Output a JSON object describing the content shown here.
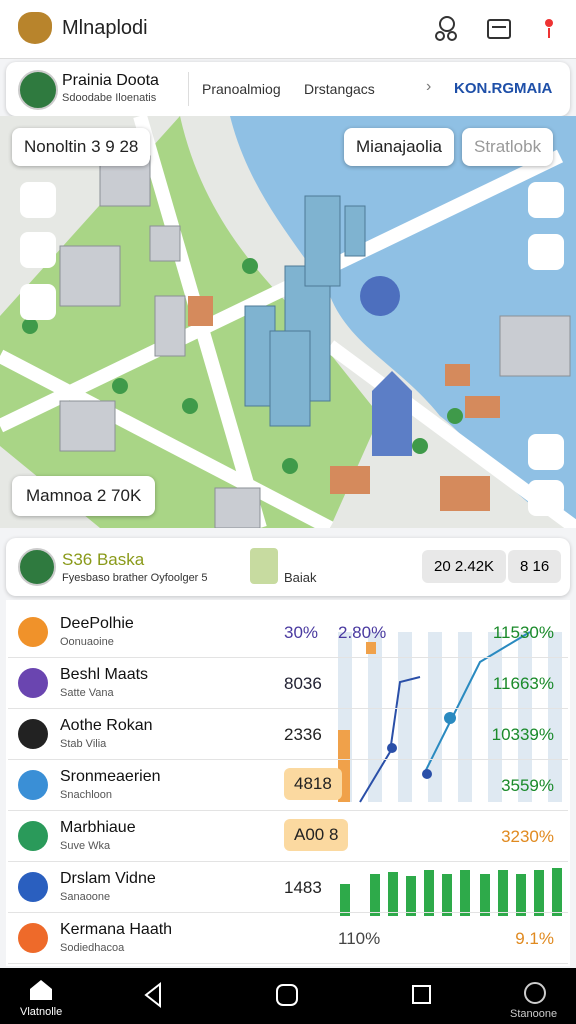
{
  "header": {
    "app_name": "Mlnaplodi"
  },
  "profile": {
    "name": "Prainia Doota",
    "subtitle": "Sdoodabe Iloenatis",
    "tabs": [
      "Pranoalmiog",
      "Drstangacs",
      "KON.RGMAIA"
    ]
  },
  "map": {
    "location_chip": "Nonoltin 3 9 28",
    "buttons": [
      "Mianajaolia",
      "Stratlobk"
    ],
    "stat_chip": "Mamnoa 2 70K"
  },
  "summary": {
    "title": "S36 Baska",
    "subtitle": "Fyesbaso brather Oyfoolger 5",
    "badge_label": "Baiak",
    "chips": [
      "20 2.42K",
      "8 16"
    ]
  },
  "list": {
    "rows": [
      {
        "title": "DeePolhie",
        "subtitle": "Oonuaoine",
        "value": "30%",
        "extra": "2.80%",
        "change": "11530%"
      },
      {
        "title": "Beshl Maats",
        "subtitle": "Satte Vana",
        "value": "8036",
        "change": "11663%"
      },
      {
        "title": "Aothe Rokan",
        "subtitle": "Stab Vilia",
        "value": "2336",
        "change": "10339%"
      },
      {
        "title": "Sronmeaerien",
        "subtitle": "Snachloon",
        "value": "4818",
        "change": "3559%"
      },
      {
        "title": "Marbhiaue",
        "subtitle": "Suve Wka",
        "value": "A00 8",
        "change": "3230%"
      },
      {
        "title": "Drslam Vidne",
        "subtitle": "Sanaoone",
        "value": "1483"
      },
      {
        "title": "Kermana Haath",
        "subtitle": "Sodiedhacoa",
        "value": "110%",
        "change": "9.1%"
      }
    ]
  },
  "nav": {
    "left": "Vlatnolle",
    "right": "Stanoone"
  }
}
